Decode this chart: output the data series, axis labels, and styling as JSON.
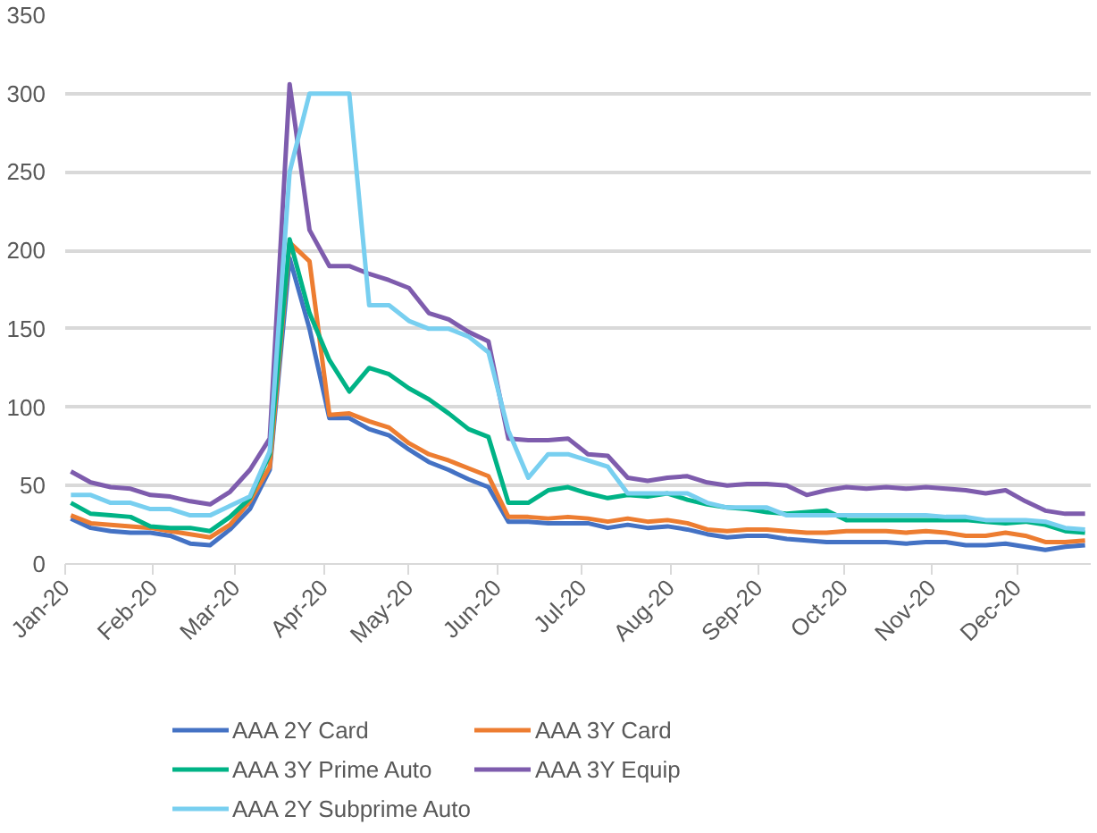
{
  "chart_data": {
    "type": "line",
    "legend": "bottom",
    "grid": "y",
    "x": [
      "2020-01-03",
      "2020-01-10",
      "2020-01-17",
      "2020-01-24",
      "2020-01-31",
      "2020-02-07",
      "2020-02-14",
      "2020-02-21",
      "2020-02-28",
      "2020-03-06",
      "2020-03-13",
      "2020-03-20",
      "2020-03-27",
      "2020-04-03",
      "2020-04-10",
      "2020-04-17",
      "2020-04-24",
      "2020-05-01",
      "2020-05-08",
      "2020-05-15",
      "2020-05-22",
      "2020-05-29",
      "2020-06-05",
      "2020-06-12",
      "2020-06-19",
      "2020-06-26",
      "2020-07-03",
      "2020-07-10",
      "2020-07-17",
      "2020-07-24",
      "2020-07-31",
      "2020-08-07",
      "2020-08-14",
      "2020-08-21",
      "2020-08-28",
      "2020-09-04",
      "2020-09-11",
      "2020-09-18",
      "2020-09-25",
      "2020-10-02",
      "2020-10-09",
      "2020-10-16",
      "2020-10-23",
      "2020-10-30",
      "2020-11-06",
      "2020-11-13",
      "2020-11-20",
      "2020-11-27",
      "2020-12-04",
      "2020-12-11",
      "2020-12-18",
      "2020-12-25"
    ],
    "xlim": [
      "2020-01-01",
      "2020-12-27"
    ],
    "xticks": [
      {
        "value": "2020-01-01",
        "label": "Jan-20"
      },
      {
        "value": "2020-02-01",
        "label": "Feb-20"
      },
      {
        "value": "2020-03-01",
        "label": "Mar-20"
      },
      {
        "value": "2020-04-01",
        "label": "Apr-20"
      },
      {
        "value": "2020-05-01",
        "label": "May-20"
      },
      {
        "value": "2020-06-01",
        "label": "Jun-20"
      },
      {
        "value": "2020-07-01",
        "label": "Jul-20"
      },
      {
        "value": "2020-08-01",
        "label": "Aug-20"
      },
      {
        "value": "2020-09-01",
        "label": "Sep-20"
      },
      {
        "value": "2020-10-01",
        "label": "Oct-20"
      },
      {
        "value": "2020-11-01",
        "label": "Nov-20"
      },
      {
        "value": "2020-12-01",
        "label": "Dec-20"
      }
    ],
    "ylim": [
      0,
      350
    ],
    "yticks": [
      0,
      50,
      100,
      150,
      200,
      250,
      300,
      350
    ],
    "series": [
      {
        "name": "AAA 2Y Card",
        "color": "#4472c4",
        "values": [
          29,
          23,
          21,
          20,
          20,
          18,
          13,
          12,
          22,
          35,
          60,
          195,
          150,
          93,
          93,
          86,
          82,
          73,
          65,
          60,
          54,
          49,
          27,
          27,
          26,
          26,
          26,
          23,
          25,
          23,
          24,
          22,
          19,
          17,
          18,
          18,
          16,
          15,
          14,
          14,
          14,
          14,
          13,
          14,
          14,
          12,
          12,
          13,
          11,
          9,
          11,
          12
        ]
      },
      {
        "name": "AAA 3Y Card",
        "color": "#ed7d31",
        "values": [
          31,
          26,
          25,
          24,
          23,
          21,
          19,
          17,
          25,
          40,
          62,
          205,
          193,
          95,
          96,
          91,
          87,
          77,
          70,
          66,
          61,
          56,
          30,
          30,
          29,
          30,
          29,
          27,
          29,
          27,
          28,
          26,
          22,
          21,
          22,
          22,
          21,
          20,
          20,
          21,
          21,
          21,
          20,
          21,
          20,
          18,
          18,
          20,
          18,
          14,
          14,
          15
        ]
      },
      {
        "name": "AAA 3Y Prime Auto",
        "color": "#00b386",
        "values": [
          39,
          32,
          31,
          30,
          24,
          23,
          23,
          21,
          30,
          42,
          70,
          207,
          160,
          130,
          110,
          125,
          121,
          112,
          105,
          96,
          86,
          81,
          39,
          39,
          47,
          49,
          45,
          42,
          44,
          43,
          45,
          41,
          38,
          36,
          35,
          33,
          32,
          33,
          34,
          28,
          28,
          28,
          28,
          28,
          28,
          28,
          27,
          26,
          27,
          25,
          21,
          20
        ]
      },
      {
        "name": "AAA 3Y Equip",
        "color": "#7e5cad",
        "values": [
          59,
          52,
          49,
          48,
          44,
          43,
          40,
          38,
          46,
          60,
          80,
          306,
          213,
          190,
          190,
          185,
          181,
          176,
          160,
          156,
          148,
          142,
          80,
          79,
          79,
          80,
          70,
          69,
          55,
          53,
          55,
          56,
          52,
          50,
          51,
          51,
          50,
          44,
          47,
          49,
          48,
          49,
          48,
          49,
          48,
          47,
          45,
          47,
          40,
          34,
          32,
          32
        ]
      },
      {
        "name": "AAA 2Y Subprime Auto",
        "color": "#78cff0",
        "values": [
          44,
          44,
          39,
          39,
          35,
          35,
          31,
          31,
          37,
          43,
          72,
          250,
          300,
          300,
          300,
          165,
          165,
          155,
          150,
          150,
          145,
          135,
          85,
          55,
          70,
          70,
          66,
          62,
          45,
          45,
          45,
          45,
          39,
          36,
          36,
          36,
          31,
          31,
          31,
          31,
          31,
          31,
          31,
          31,
          30,
          30,
          28,
          28,
          28,
          27,
          23,
          22
        ]
      }
    ]
  }
}
